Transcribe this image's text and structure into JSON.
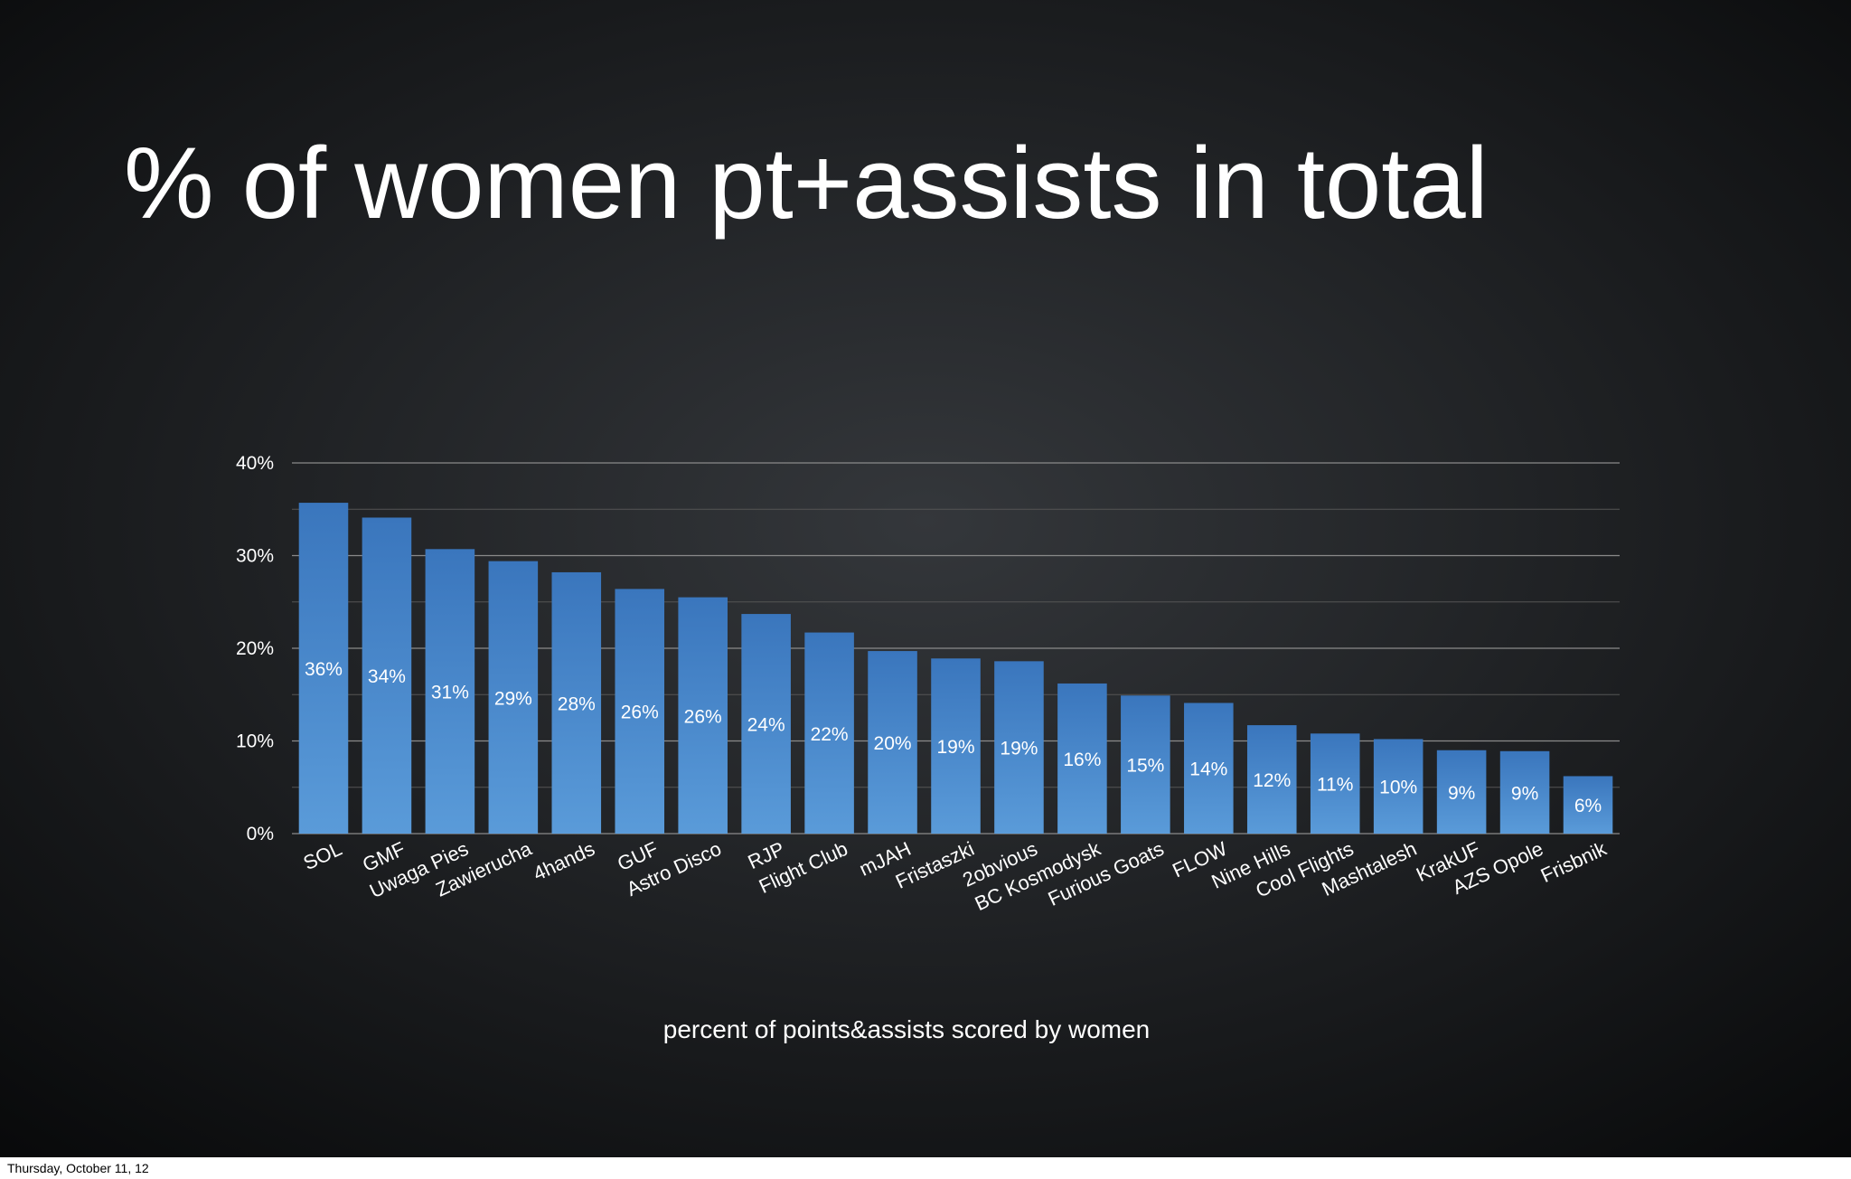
{
  "chart_data": {
    "type": "bar",
    "title": "% of women pt+assists in total",
    "x_label": "percent of points&assists scored by women",
    "categories": [
      "SOL",
      "GMF",
      "Uwaga Pies",
      "Zawierucha",
      "4hands",
      "GUF",
      "Astro Disco",
      "RJP",
      "Flight Club",
      "mJAH",
      "Fristaszki",
      "2obvious",
      "BC Kosmodysk",
      "Furious Goats",
      "FLOW",
      "Nine Hills",
      "Cool Flights",
      "Mashtalesh",
      "KrakUF",
      "AZS Opole",
      "Frisbnik"
    ],
    "values": [
      35.7,
      34.1,
      30.7,
      29.4,
      28.2,
      26.4,
      25.5,
      23.7,
      21.7,
      19.7,
      18.9,
      18.6,
      16.2,
      14.9,
      14.1,
      11.7,
      10.8,
      10.2,
      9.0,
      8.9,
      6.2
    ],
    "value_labels": [
      "36%",
      "34%",
      "31%",
      "29%",
      "28%",
      "26%",
      "26%",
      "24%",
      "22%",
      "20%",
      "19%",
      "19%",
      "16%",
      "15%",
      "14%",
      "12%",
      "11%",
      "10%",
      "9%",
      "9%",
      "6%"
    ],
    "color": "#4a8ad0",
    "ylim": [
      0,
      40
    ],
    "yticks": [
      {
        "value": 0,
        "label": "0%"
      },
      {
        "value": 10,
        "label": "10%"
      },
      {
        "value": 20,
        "label": "20%"
      },
      {
        "value": 30,
        "label": "30%"
      },
      {
        "value": 40,
        "label": "40%"
      }
    ],
    "minor_yticks": [
      5,
      15,
      25,
      35
    ],
    "grid": true
  },
  "footer": {
    "date": "Thursday, October 11, 12"
  }
}
